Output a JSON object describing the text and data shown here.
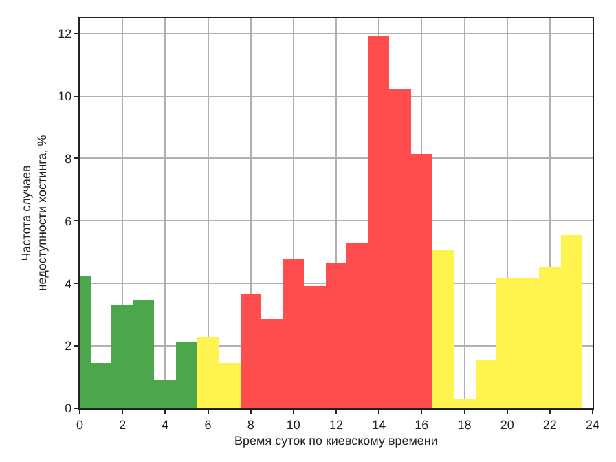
{
  "chart_data": {
    "type": "histogram",
    "xlabel": "Время суток по киевскому времени",
    "ylabel": "Частота случаев\nнедоступности хостинга, %",
    "bins": [
      -0.5,
      0.5,
      1.5,
      2.5,
      3.5,
      4.5,
      5.5,
      6.5,
      7.5,
      8.5,
      9.5,
      10.5,
      11.5,
      12.5,
      13.5,
      14.5,
      15.5,
      16.5,
      17.5,
      18.5,
      19.5,
      20.5,
      21.5,
      22.5,
      23.5
    ],
    "values": [
      4.24,
      1.47,
      3.31,
      3.49,
      0.94,
      2.13,
      2.3,
      1.47,
      3.67,
      2.87,
      4.81,
      3.93,
      4.66,
      5.29,
      11.94,
      10.22,
      8.15,
      5.04,
      0.32,
      1.55,
      4.16,
      4.19,
      4.55,
      5.56
    ],
    "colors": [
      "#4ca64c",
      "#4ca64c",
      "#4ca64c",
      "#4ca64c",
      "#4ca64c",
      "#4ca64c",
      "#fff44f",
      "#fff44f",
      "#ff4c4c",
      "#ff4c4c",
      "#ff4c4c",
      "#ff4c4c",
      "#ff4c4c",
      "#ff4c4c",
      "#ff4c4c",
      "#ff4c4c",
      "#ff4c4c",
      "#fff44f",
      "#fff44f",
      "#fff44f",
      "#fff44f",
      "#fff44f",
      "#fff44f",
      "#fff44f"
    ],
    "xlim": [
      0,
      24
    ],
    "xticks": [
      0,
      2,
      4,
      6,
      8,
      10,
      12,
      14,
      16,
      18,
      20,
      22,
      24
    ],
    "ylim": [
      0,
      12.5
    ],
    "yticks": [
      0,
      2,
      4,
      6,
      8,
      10,
      12
    ],
    "grid": true
  }
}
